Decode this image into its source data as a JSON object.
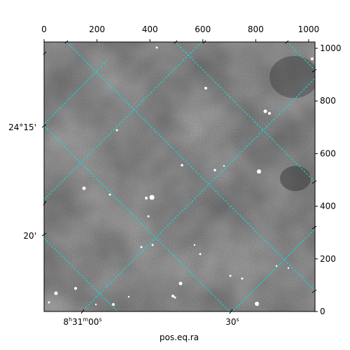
{
  "chart_data": {
    "type": "image",
    "xlabel": "pos.eq.ra",
    "xlim": [
      0,
      1024
    ],
    "ylim": [
      0,
      1024
    ],
    "xticks": [
      0,
      200,
      400,
      600,
      800,
      1000
    ],
    "yticks": [
      0,
      200,
      400,
      600,
      800,
      1000
    ],
    "dec_tick_labels": [
      "24°15'",
      "20'"
    ],
    "ra_tick_labels": [
      [
        "8",
        "h",
        "31",
        "m",
        "00",
        "s"
      ],
      [
        "30",
        "s"
      ]
    ],
    "grid_color": "#00e5e5"
  }
}
